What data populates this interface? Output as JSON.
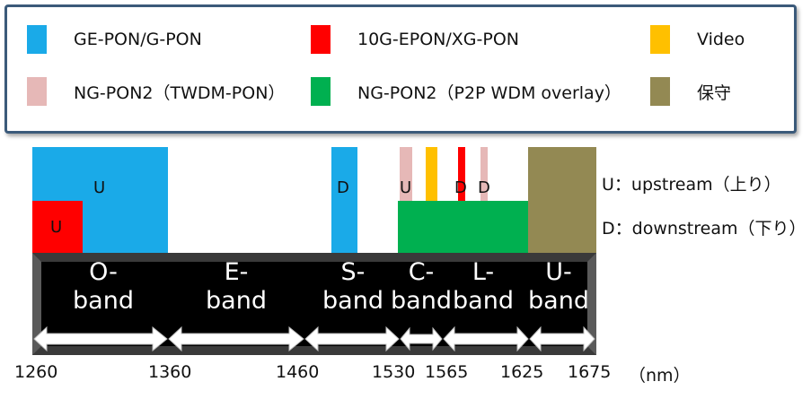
{
  "legend": [
    {
      "label": "GE-PON/G-PON",
      "color": "#1aaae8"
    },
    {
      "label": "10G-EPON/XG-PON",
      "color": "#ff0000"
    },
    {
      "label": "Video",
      "color": "#ffc000"
    },
    {
      "label": "NG-PON2（TWDM-PON）",
      "color": "#e6b8b7"
    },
    {
      "label": "NG-PON2（P2P WDM overlay）",
      "color": "#00b050"
    },
    {
      "label": "保守",
      "color": "#938953"
    }
  ],
  "usage_labels": {
    "o_band_upstream": "U",
    "red_upstream": "U",
    "s_band_downstream": "D",
    "c_band_upstream": "U",
    "l_band_downstream_red": "D",
    "l_band_downstream_pink": "D"
  },
  "bands": [
    {
      "name": "O-\nband"
    },
    {
      "name": "E-\nband"
    },
    {
      "name": "S-\nband"
    },
    {
      "name": "C-\nband"
    },
    {
      "name": "L-\nband"
    },
    {
      "name": "U-\nband"
    }
  ],
  "ticks": [
    "1260",
    "1360",
    "1460",
    "1530",
    "1565",
    "1625",
    "1675"
  ],
  "unit": "（nm）",
  "notes": {
    "upstream": "U：upstream（上り）",
    "downstream": "D：downstream（下り）"
  }
}
